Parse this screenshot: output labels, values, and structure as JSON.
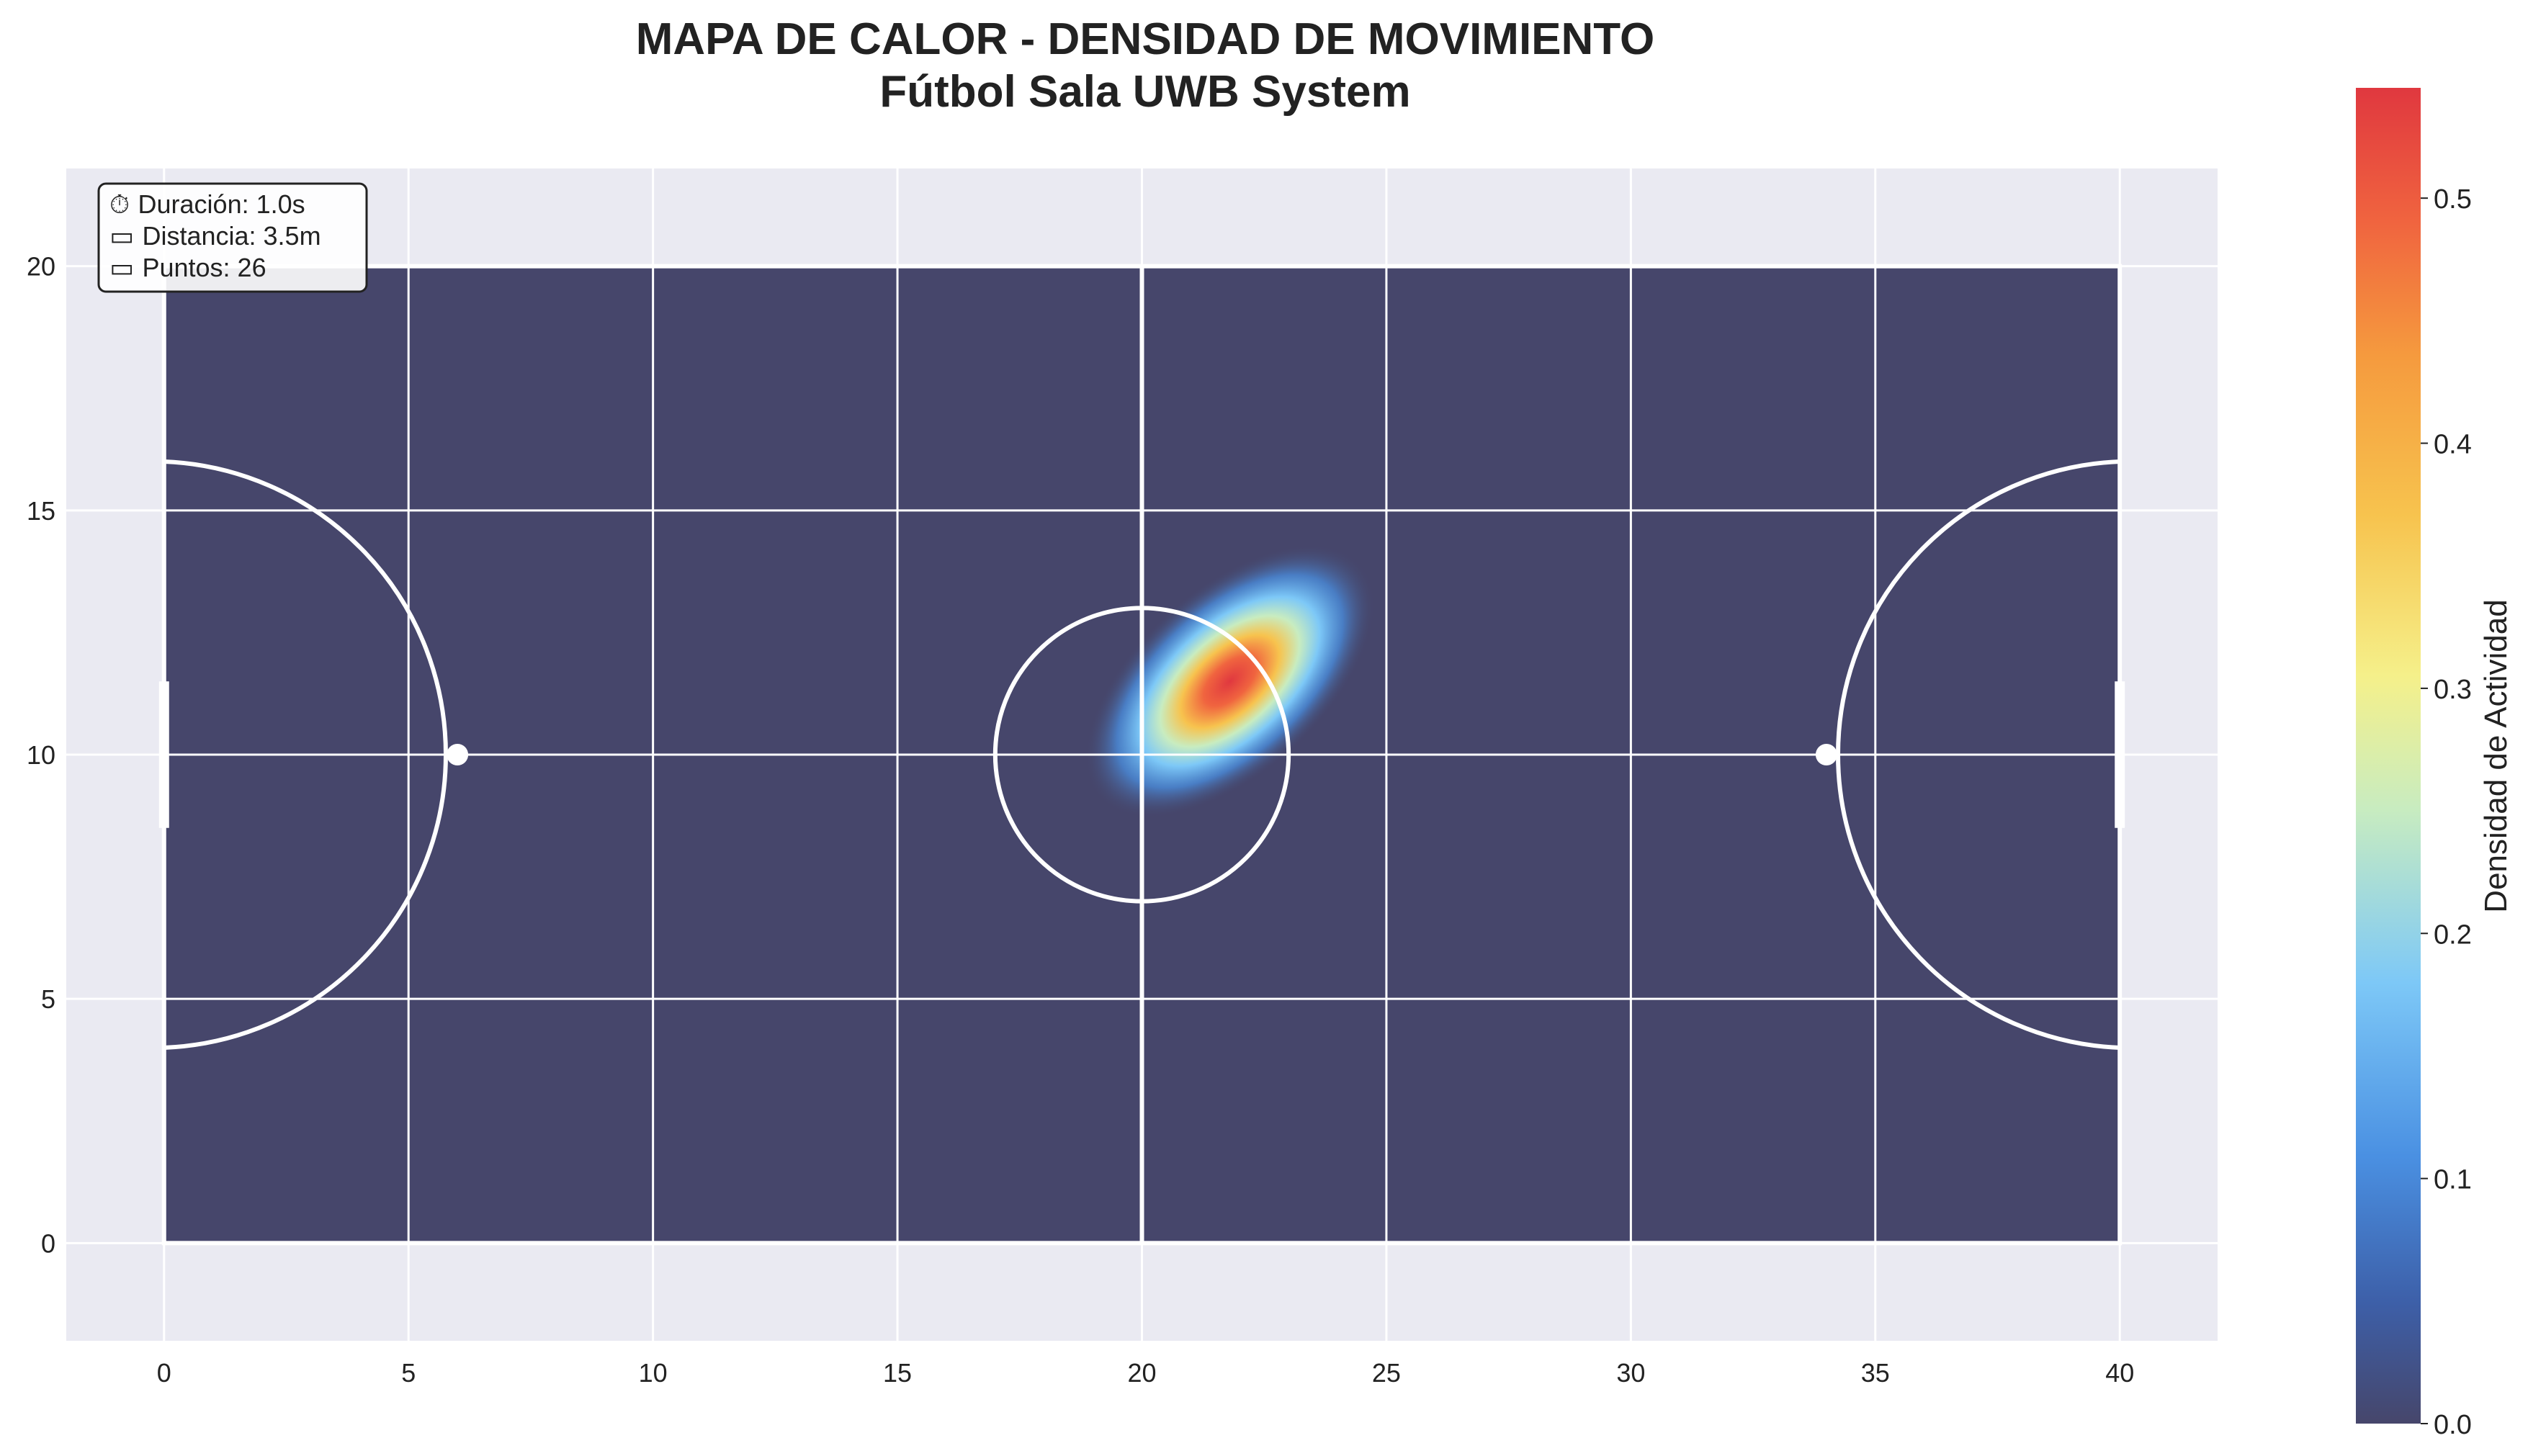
{
  "chart_data": {
    "type": "heatmap",
    "title": "MAPA DE CALOR - DENSIDAD DE MOVIMIENTO",
    "subtitle": "Fútbol Sala UWB System",
    "xlabel": "",
    "ylabel": "",
    "xlim": [
      -2,
      42
    ],
    "ylim": [
      -2,
      22
    ],
    "xticks": [
      "0",
      "5",
      "10",
      "15",
      "20",
      "25",
      "30",
      "35",
      "40"
    ],
    "yticks": [
      "0",
      "5",
      "10",
      "15",
      "20"
    ],
    "grid": true,
    "court": {
      "length": 40,
      "width": 20,
      "center_circle_radius": 3,
      "area_arc_radius": 6,
      "penalty_spots": [
        [
          6,
          10
        ],
        [
          34,
          10
        ]
      ],
      "center": [
        20,
        10
      ]
    },
    "density_peak": {
      "x": 21.8,
      "y": 11.5,
      "value": 0.54
    },
    "colorbar": {
      "label": "Densidad de Actividad",
      "min": 0.0,
      "max": 0.545,
      "ticks": [
        "0.0",
        "0.1",
        "0.2",
        "0.3",
        "0.4",
        "0.5"
      ],
      "colors": [
        "#46466b",
        "#3d5fa8",
        "#4a90e2",
        "#7dc8f7",
        "#c8ecc0",
        "#f5f08a",
        "#f7c34e",
        "#f59a3e",
        "#f0643f",
        "#e0383f"
      ]
    },
    "info_box": {
      "duration": "Duración: 1.0s",
      "distance": "Distancia: 3.5m",
      "points": "Puntos: 26"
    },
    "colors": {
      "court_fill": "#46466b",
      "axes_bg": "#eaeaf2",
      "lines": "#ffffff"
    }
  }
}
